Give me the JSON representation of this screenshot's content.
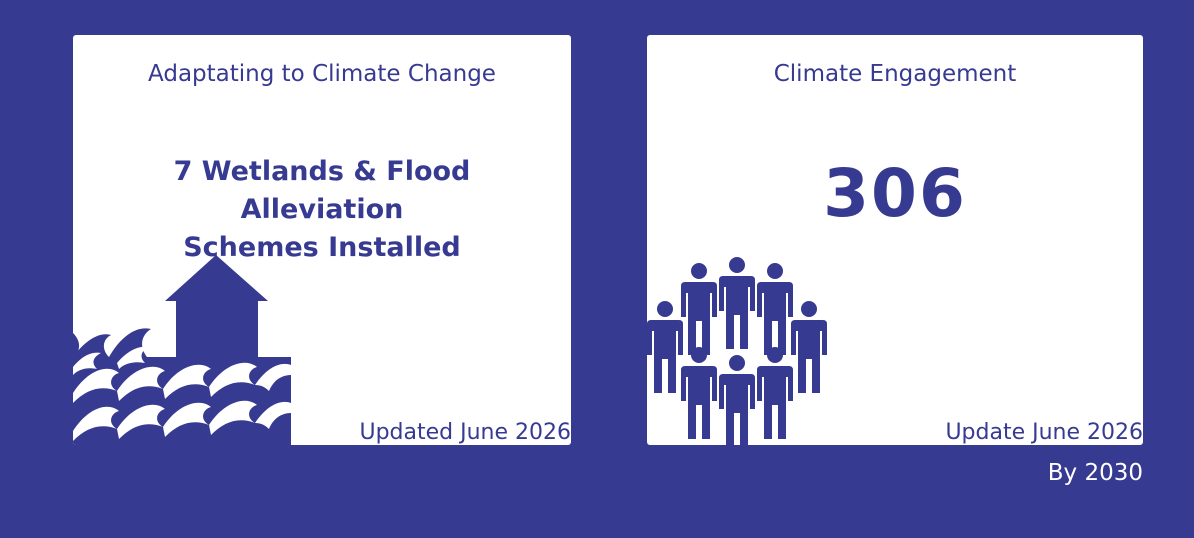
{
  "cards": [
    {
      "title": "Adaptating to Climate Change",
      "headline_line1": "7 Wetlands & Flood Alleviation",
      "headline_line2": "Schemes Installed",
      "updated": "Updated June 2026",
      "icon": "flooded-house-icon"
    },
    {
      "title": "Climate Engagement",
      "value": "306",
      "updated": "Update June 2026",
      "icon": "people-group-icon"
    }
  ],
  "footer": {
    "by_year": "By 2030"
  },
  "colors": {
    "background": "#373a91",
    "card": "#ffffff",
    "accent": "#373a91"
  }
}
